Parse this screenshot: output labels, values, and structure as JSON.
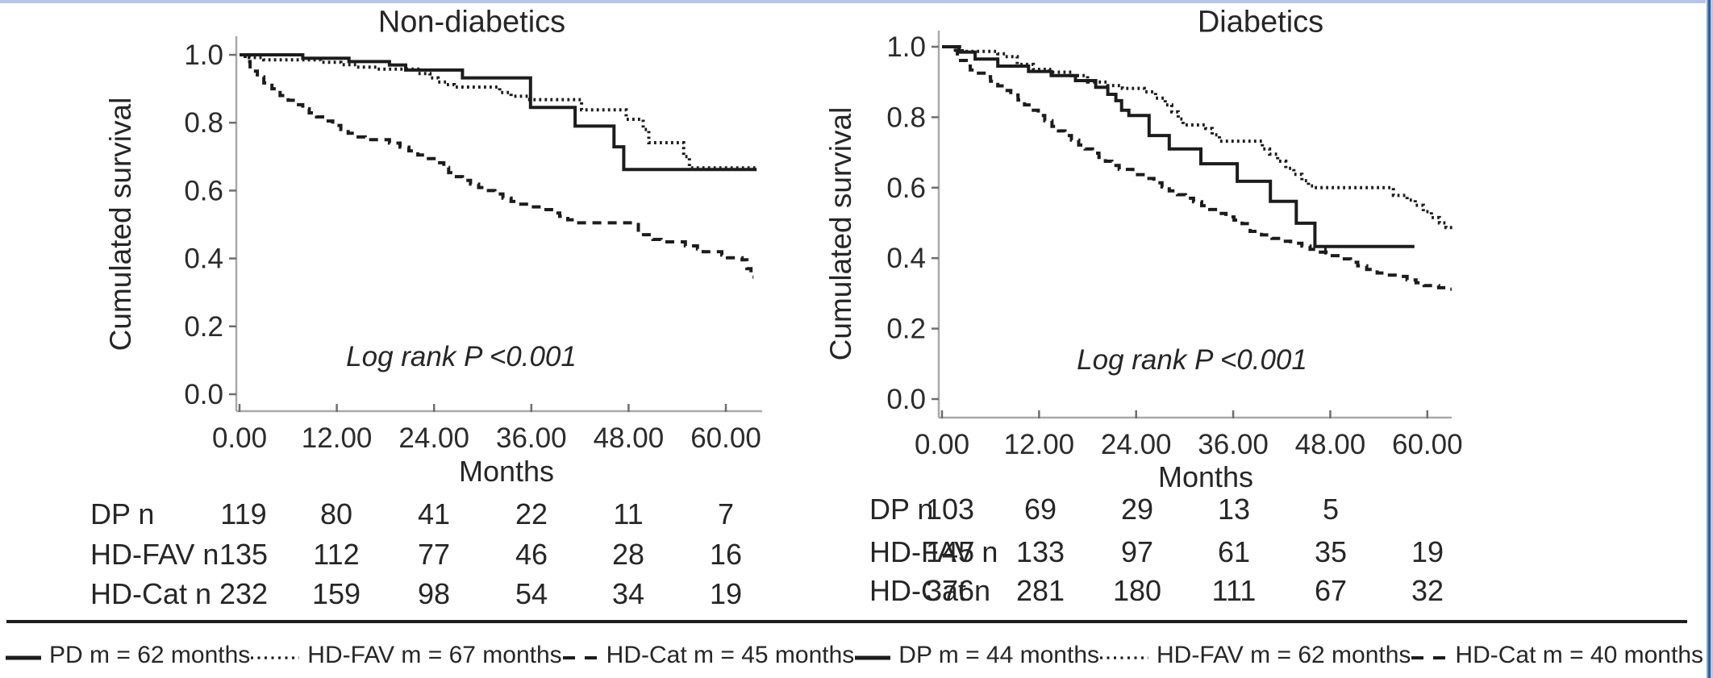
{
  "figure": {
    "kind": "Kaplan-Meier survival curves, dialysis access outcomes by diabetic status",
    "colors": {
      "curve": "#1c1c1c",
      "axis": "#a9a9a9",
      "text": "#2b2b2b",
      "top_border": "#b9c5e7",
      "right_border": "#2e5f9b",
      "divider": "#1e1e1e",
      "background": "#ffffff"
    },
    "legend": [
      {
        "style": "solid",
        "label": "PD m = 62 months"
      },
      {
        "style": "dotted",
        "label": "HD-FAV m = 67 months"
      },
      {
        "style": "dashed",
        "label": "HD-Cat m = 45 months"
      },
      {
        "style": "solid",
        "label": "DP m = 44 months"
      },
      {
        "style": "dotted",
        "label": "HD-FAV m = 62 months"
      },
      {
        "style": "dashed",
        "label": "HD-Cat m = 40 months"
      }
    ]
  },
  "chart_data": [
    {
      "type": "line",
      "step": true,
      "title": "Non-diabetics",
      "ylabel": "Cumulated survival",
      "xlabel": "Months",
      "annotation": "Log rank P <0.001",
      "xlim": [
        0,
        66
      ],
      "ylim": [
        0.0,
        1.05
      ],
      "grid": false,
      "x_ticks": [
        0,
        12,
        24,
        36,
        48,
        60
      ],
      "x_tick_labels": [
        "0.00",
        "12.00",
        "24.00",
        "36.00",
        "48.00",
        "60.00"
      ],
      "y_ticks": [
        1.0,
        0.8,
        0.6,
        0.4,
        0.2,
        0.0
      ],
      "y_tick_labels": [
        "1.0",
        "0.8",
        "0.6",
        "0.4",
        "0.2",
        "0.0"
      ],
      "series": [
        {
          "name": "PD",
          "style": "solid",
          "end": 63.8,
          "censors": [],
          "points": [
            [
              0,
              1.0
            ],
            [
              7.8,
              0.99
            ],
            [
              13.5,
              0.98
            ],
            [
              18.5,
              0.97
            ],
            [
              20.5,
              0.955
            ],
            [
              27.5,
              0.932
            ],
            [
              35.9,
              0.845
            ],
            [
              41.4,
              0.79
            ],
            [
              46.2,
              0.729
            ],
            [
              47.4,
              0.662
            ]
          ]
        },
        {
          "name": "HD-FAV",
          "style": "dotted",
          "end": 63.8,
          "censors": [],
          "points": [
            [
              0,
              1.0
            ],
            [
              1.2,
              0.992
            ],
            [
              3,
              0.985
            ],
            [
              10,
              0.978
            ],
            [
              12.5,
              0.971
            ],
            [
              14.5,
              0.964
            ],
            [
              17,
              0.958
            ],
            [
              22,
              0.945
            ],
            [
              23.5,
              0.932
            ],
            [
              24.5,
              0.92
            ],
            [
              25.5,
              0.912
            ],
            [
              26.5,
              0.905
            ],
            [
              32.1,
              0.889
            ],
            [
              33.5,
              0.878
            ],
            [
              35.8,
              0.868
            ],
            [
              42.2,
              0.838
            ],
            [
              47.7,
              0.81
            ],
            [
              49.8,
              0.78
            ],
            [
              50.5,
              0.741
            ],
            [
              54.8,
              0.7
            ],
            [
              55.5,
              0.667
            ]
          ]
        },
        {
          "name": "HD-Cat",
          "style": "dashed",
          "end": 63.4,
          "censors": [],
          "points": [
            [
              0,
              1.0
            ],
            [
              0.7,
              0.98
            ],
            [
              1.3,
              0.952
            ],
            [
              2.2,
              0.935
            ],
            [
              3,
              0.917
            ],
            [
              4,
              0.9
            ],
            [
              5,
              0.88
            ],
            [
              6,
              0.866
            ],
            [
              7,
              0.853
            ],
            [
              7.8,
              0.841
            ],
            [
              8.6,
              0.829
            ],
            [
              9.5,
              0.817
            ],
            [
              10.5,
              0.805
            ],
            [
              11.5,
              0.792
            ],
            [
              12.5,
              0.78
            ],
            [
              13.4,
              0.769
            ],
            [
              14.2,
              0.758
            ],
            [
              15.5,
              0.75
            ],
            [
              18.5,
              0.74
            ],
            [
              19.8,
              0.728
            ],
            [
              20.9,
              0.717
            ],
            [
              22,
              0.705
            ],
            [
              22.9,
              0.694
            ],
            [
              24,
              0.682
            ],
            [
              25.2,
              0.668
            ],
            [
              25.8,
              0.653
            ],
            [
              26.4,
              0.641
            ],
            [
              27.5,
              0.63
            ],
            [
              28.5,
              0.619
            ],
            [
              29.5,
              0.609
            ],
            [
              30.5,
              0.6
            ],
            [
              31.5,
              0.59
            ],
            [
              32.5,
              0.578
            ],
            [
              33.5,
              0.568
            ],
            [
              34.5,
              0.56
            ],
            [
              36,
              0.552
            ],
            [
              37.5,
              0.544
            ],
            [
              38.5,
              0.534
            ],
            [
              39.5,
              0.524
            ],
            [
              40.5,
              0.514
            ],
            [
              41.5,
              0.505
            ],
            [
              49.2,
              0.47
            ],
            [
              51,
              0.456
            ],
            [
              52,
              0.449
            ],
            [
              55,
              0.437
            ],
            [
              56.5,
              0.428
            ],
            [
              57.2,
              0.42
            ],
            [
              59.5,
              0.41
            ],
            [
              60.2,
              0.402
            ],
            [
              62,
              0.396
            ],
            [
              62.6,
              0.37
            ],
            [
              63.1,
              0.345
            ]
          ]
        }
      ],
      "risk_table": {
        "rows": [
          {
            "label": "DP n",
            "values": [
              "119",
              "80",
              "41",
              "22",
              "11",
              "7"
            ]
          },
          {
            "label": "HD-FAV n",
            "values": [
              "135",
              "112",
              "77",
              "46",
              "28",
              "16"
            ]
          },
          {
            "label": "HD-Cat n",
            "values": [
              "232",
              "159",
              "98",
              "54",
              "34",
              "19"
            ]
          }
        ]
      }
    },
    {
      "type": "line",
      "step": true,
      "title": "Diabetics",
      "ylabel": "Cumulated survival",
      "xlabel": "Months",
      "annotation": "Log rank P <0.001",
      "xlim": [
        0,
        66
      ],
      "ylim": [
        0.0,
        1.05
      ],
      "grid": false,
      "x_ticks": [
        0,
        12,
        24,
        36,
        48,
        60
      ],
      "x_tick_labels": [
        "0.00",
        "12.00",
        "24.00",
        "36.00",
        "48.00",
        "60.00"
      ],
      "y_ticks": [
        1.0,
        0.8,
        0.6,
        0.4,
        0.2,
        0.0
      ],
      "y_tick_labels": [
        "1.0",
        "0.8",
        "0.6",
        "0.4",
        "0.2",
        "0.0"
      ],
      "series": [
        {
          "name": "DP",
          "style": "solid",
          "end": 58.4,
          "censors": [
            47.4
          ],
          "points": [
            [
              0,
              1.0
            ],
            [
              2.1,
              0.985
            ],
            [
              4.1,
              0.965
            ],
            [
              6.9,
              0.945
            ],
            [
              10.7,
              0.93
            ],
            [
              13.5,
              0.918
            ],
            [
              16.5,
              0.904
            ],
            [
              19,
              0.885
            ],
            [
              20.5,
              0.865
            ],
            [
              21.5,
              0.847
            ],
            [
              22.2,
              0.82
            ],
            [
              23.1,
              0.805
            ],
            [
              25.6,
              0.748
            ],
            [
              28.1,
              0.71
            ],
            [
              32,
              0.668
            ],
            [
              36.5,
              0.618
            ],
            [
              40.6,
              0.561
            ],
            [
              43.8,
              0.499
            ],
            [
              46.1,
              0.433
            ]
          ]
        },
        {
          "name": "HD-FAV",
          "style": "dotted",
          "end": 63.2,
          "censors": [],
          "points": [
            [
              0,
              1.0
            ],
            [
              2.5,
              0.987
            ],
            [
              6.9,
              0.98
            ],
            [
              7.8,
              0.972
            ],
            [
              9.3,
              0.95
            ],
            [
              11.3,
              0.936
            ],
            [
              13.3,
              0.928
            ],
            [
              16,
              0.918
            ],
            [
              18,
              0.9
            ],
            [
              20.5,
              0.89
            ],
            [
              22.3,
              0.882
            ],
            [
              25,
              0.872
            ],
            [
              26.4,
              0.854
            ],
            [
              27.6,
              0.835
            ],
            [
              28.4,
              0.815
            ],
            [
              29.2,
              0.795
            ],
            [
              29.8,
              0.778
            ],
            [
              32.6,
              0.768
            ],
            [
              33.4,
              0.75
            ],
            [
              34.3,
              0.732
            ],
            [
              39.6,
              0.71
            ],
            [
              40.5,
              0.695
            ],
            [
              41.5,
              0.675
            ],
            [
              42.5,
              0.655
            ],
            [
              43.5,
              0.638
            ],
            [
              44.5,
              0.62
            ],
            [
              45.3,
              0.605
            ],
            [
              46,
              0.6
            ],
            [
              55.8,
              0.578
            ],
            [
              57.5,
              0.565
            ],
            [
              58.5,
              0.55
            ],
            [
              59.5,
              0.532
            ],
            [
              60.5,
              0.515
            ],
            [
              61.5,
              0.5
            ],
            [
              62.3,
              0.487
            ]
          ]
        },
        {
          "name": "HD-Cat",
          "style": "dashed",
          "end": 63.0,
          "censors": [],
          "points": [
            [
              0,
              1.0
            ],
            [
              0.9,
              0.99
            ],
            [
              1.9,
              0.961
            ],
            [
              3,
              0.945
            ],
            [
              3.5,
              0.934
            ],
            [
              4.3,
              0.925
            ],
            [
              5.2,
              0.915
            ],
            [
              6,
              0.902
            ],
            [
              6.9,
              0.889
            ],
            [
              7.7,
              0.876
            ],
            [
              8.5,
              0.863
            ],
            [
              9.4,
              0.849
            ],
            [
              10.2,
              0.835
            ],
            [
              11,
              0.82
            ],
            [
              11.9,
              0.805
            ],
            [
              12.7,
              0.79
            ],
            [
              13.6,
              0.774
            ],
            [
              14.4,
              0.761
            ],
            [
              15.2,
              0.748
            ],
            [
              16,
              0.735
            ],
            [
              16.9,
              0.721
            ],
            [
              17.7,
              0.71
            ],
            [
              18.6,
              0.698
            ],
            [
              19.4,
              0.686
            ],
            [
              20.2,
              0.675
            ],
            [
              21,
              0.663
            ],
            [
              21.9,
              0.652
            ],
            [
              23.6,
              0.637
            ],
            [
              25.2,
              0.626
            ],
            [
              26.2,
              0.614
            ],
            [
              27.2,
              0.602
            ],
            [
              28.1,
              0.591
            ],
            [
              29.1,
              0.58
            ],
            [
              30.1,
              0.57
            ],
            [
              31.1,
              0.56
            ],
            [
              32.1,
              0.549
            ],
            [
              33.1,
              0.538
            ],
            [
              34.1,
              0.527
            ],
            [
              35.1,
              0.517
            ],
            [
              36.1,
              0.508
            ],
            [
              37.1,
              0.498
            ],
            [
              38.1,
              0.476
            ],
            [
              39.5,
              0.466
            ],
            [
              40.8,
              0.456
            ],
            [
              42,
              0.448
            ],
            [
              43.1,
              0.442
            ],
            [
              44.5,
              0.434
            ],
            [
              45.5,
              0.425
            ],
            [
              46.4,
              0.417
            ],
            [
              48,
              0.407
            ],
            [
              49.5,
              0.398
            ],
            [
              50.5,
              0.388
            ],
            [
              51.4,
              0.378
            ],
            [
              52.5,
              0.368
            ],
            [
              53.8,
              0.358
            ],
            [
              55,
              0.352
            ],
            [
              56.4,
              0.348
            ],
            [
              57.5,
              0.338
            ],
            [
              58.6,
              0.33
            ],
            [
              59.6,
              0.322
            ],
            [
              61.4,
              0.316
            ],
            [
              62.4,
              0.312
            ]
          ]
        }
      ],
      "risk_table": {
        "rows": [
          {
            "label": "DP n",
            "values": [
              "103",
              "69",
              "29",
              "13",
              "5",
              ""
            ]
          },
          {
            "label": "HD-FAV n",
            "values": [
              "145",
              "133",
              "97",
              "61",
              "35",
              "19"
            ]
          },
          {
            "label": "HD-Cat n",
            "values": [
              "376",
              "281",
              "180",
              "111",
              "67",
              "32"
            ]
          }
        ]
      }
    }
  ]
}
